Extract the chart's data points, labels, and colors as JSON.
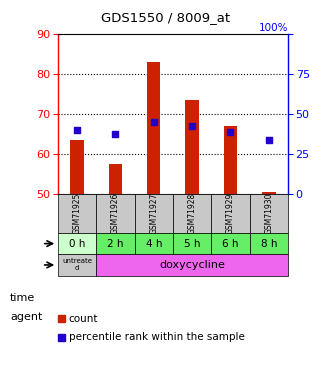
{
  "title": "GDS1550 / 8009_at",
  "samples": [
    "GSM71925",
    "GSM71926",
    "GSM71927",
    "GSM71928",
    "GSM71929",
    "GSM71930"
  ],
  "time_labels": [
    "0 h",
    "2 h",
    "4 h",
    "5 h",
    "6 h",
    "8 h"
  ],
  "count_values": [
    63.5,
    57.5,
    83.0,
    73.5,
    67.0,
    50.5
  ],
  "count_base": 50,
  "percentile_values": [
    66,
    65,
    68,
    67,
    65.5,
    63.5
  ],
  "ylim": [
    50,
    90
  ],
  "y2lim": [
    0,
    100
  ],
  "yticks": [
    50,
    60,
    70,
    80,
    90
  ],
  "y2ticks": [
    0,
    25,
    50,
    75,
    100
  ],
  "bar_color": "#cc2200",
  "dot_color": "#2200cc",
  "bg_color": "#ffffff",
  "table_bg_gray": "#c8c8c8",
  "time_bg_light": "#ccffcc",
  "time_bg_dark": "#66ee66",
  "agent_bg_gray": "#c8c8c8",
  "agent_bg_magenta": "#ee66ee",
  "bar_width": 0.35,
  "legend_count": "count",
  "legend_pct": "percentile rank within the sample"
}
